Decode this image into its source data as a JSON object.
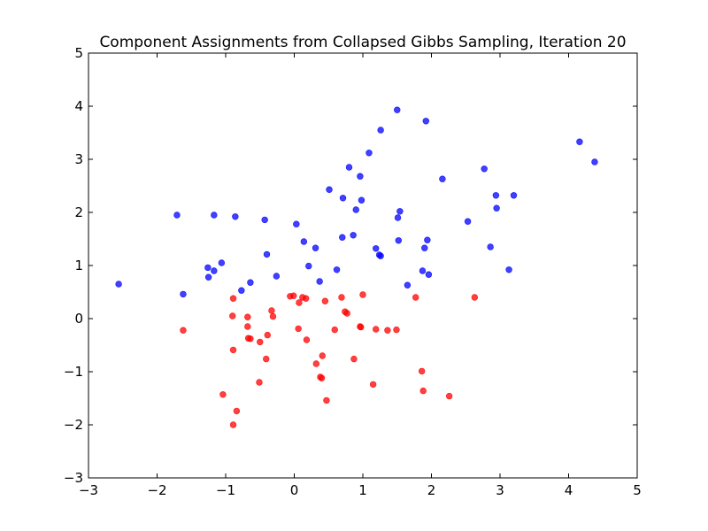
{
  "chart_data": {
    "type": "scatter",
    "title": "Component Assignments from Collapsed Gibbs Sampling, Iteration 20",
    "xlabel": "",
    "ylabel": "",
    "xlim": [
      -3,
      5
    ],
    "ylim": [
      -3,
      5
    ],
    "x_ticks": [
      "−3",
      "−2",
      "−1",
      "0",
      "1",
      "2",
      "3",
      "4",
      "5"
    ],
    "y_ticks": [
      "−3",
      "−2",
      "−1",
      "0",
      "1",
      "2",
      "3",
      "4",
      "5"
    ],
    "grid": false,
    "legend": "none",
    "series": [
      {
        "color": "#0000ff",
        "points": [
          [
            1.5,
            3.93
          ],
          [
            1.92,
            3.72
          ],
          [
            1.26,
            3.55
          ],
          [
            4.16,
            3.33
          ],
          [
            4.38,
            2.95
          ],
          [
            1.09,
            3.12
          ],
          [
            0.8,
            2.85
          ],
          [
            2.77,
            2.82
          ],
          [
            2.16,
            2.63
          ],
          [
            0.96,
            2.68
          ],
          [
            0.51,
            2.43
          ],
          [
            0.71,
            2.27
          ],
          [
            0.98,
            2.23
          ],
          [
            2.94,
            2.32
          ],
          [
            3.2,
            2.32
          ],
          [
            0.9,
            2.05
          ],
          [
            2.95,
            2.08
          ],
          [
            1.54,
            2.02
          ],
          [
            1.51,
            1.9
          ],
          [
            -1.71,
            1.95
          ],
          [
            -1.17,
            1.95
          ],
          [
            -0.86,
            1.92
          ],
          [
            -0.43,
            1.86
          ],
          [
            0.03,
            1.78
          ],
          [
            2.53,
            1.83
          ],
          [
            0.86,
            1.57
          ],
          [
            0.7,
            1.53
          ],
          [
            0.14,
            1.45
          ],
          [
            1.52,
            1.47
          ],
          [
            1.94,
            1.48
          ],
          [
            0.31,
            1.33
          ],
          [
            1.19,
            1.32
          ],
          [
            1.9,
            1.33
          ],
          [
            2.86,
            1.35
          ],
          [
            1.24,
            1.2
          ],
          [
            1.26,
            1.18
          ],
          [
            -0.4,
            1.21
          ],
          [
            -1.06,
            1.05
          ],
          [
            0.21,
            0.99
          ],
          [
            -1.26,
            0.96
          ],
          [
            -1.17,
            0.9
          ],
          [
            0.62,
            0.92
          ],
          [
            1.87,
            0.9
          ],
          [
            1.96,
            0.83
          ],
          [
            3.13,
            0.92
          ],
          [
            -1.25,
            0.78
          ],
          [
            -0.26,
            0.8
          ],
          [
            0.37,
            0.7
          ],
          [
            -0.64,
            0.68
          ],
          [
            1.65,
            0.63
          ],
          [
            -2.56,
            0.65
          ],
          [
            -0.77,
            0.53
          ],
          [
            -1.62,
            0.46
          ]
        ]
      },
      {
        "color": "#ff0000",
        "points": [
          [
            -0.06,
            0.42
          ],
          [
            -0.01,
            0.43
          ],
          [
            0.12,
            0.4
          ],
          [
            0.17,
            0.38
          ],
          [
            0.69,
            0.4
          ],
          [
            1.0,
            0.45
          ],
          [
            1.77,
            0.4
          ],
          [
            2.63,
            0.4
          ],
          [
            -0.89,
            0.38
          ],
          [
            0.07,
            0.3
          ],
          [
            0.45,
            0.33
          ],
          [
            -0.33,
            0.15
          ],
          [
            0.74,
            0.13
          ],
          [
            0.77,
            0.1
          ],
          [
            -0.9,
            0.05
          ],
          [
            -0.68,
            0.03
          ],
          [
            -0.31,
            0.04
          ],
          [
            -0.68,
            -0.15
          ],
          [
            0.06,
            -0.19
          ],
          [
            0.59,
            -0.21
          ],
          [
            0.96,
            -0.15
          ],
          [
            0.97,
            -0.16
          ],
          [
            1.19,
            -0.2
          ],
          [
            1.36,
            -0.22
          ],
          [
            1.49,
            -0.21
          ],
          [
            -1.62,
            -0.22
          ],
          [
            -0.39,
            -0.31
          ],
          [
            -0.67,
            -0.37
          ],
          [
            -0.64,
            -0.38
          ],
          [
            -0.5,
            -0.44
          ],
          [
            0.18,
            -0.4
          ],
          [
            -0.89,
            -0.59
          ],
          [
            0.41,
            -0.7
          ],
          [
            -0.41,
            -0.76
          ],
          [
            0.87,
            -0.76
          ],
          [
            0.32,
            -0.85
          ],
          [
            1.86,
            -0.99
          ],
          [
            0.38,
            -1.1
          ],
          [
            0.4,
            -1.12
          ],
          [
            -0.51,
            -1.2
          ],
          [
            1.15,
            -1.24
          ],
          [
            1.88,
            -1.36
          ],
          [
            -1.04,
            -1.43
          ],
          [
            2.26,
            -1.46
          ],
          [
            0.47,
            -1.54
          ],
          [
            -0.84,
            -1.74
          ],
          [
            -0.89,
            -2.0
          ]
        ]
      }
    ]
  }
}
